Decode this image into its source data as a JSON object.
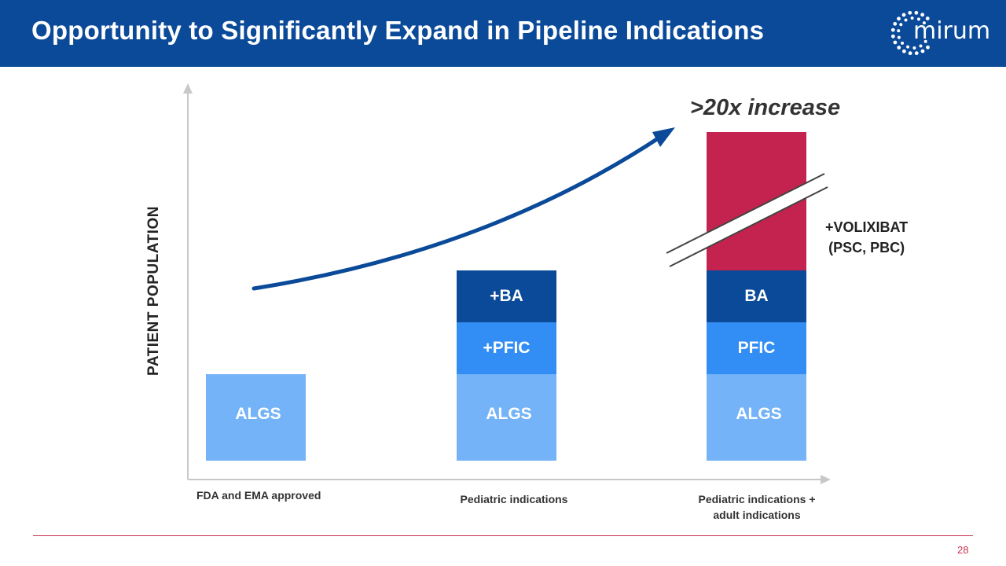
{
  "header": {
    "title": "Opportunity to Significantly Expand in Pipeline Indications",
    "logo_text": "mirum",
    "background": "#0a4a98"
  },
  "chart_data": {
    "type": "bar",
    "stacked": true,
    "ylabel": "PATIENT POPULATION",
    "categories": [
      "FDA and EMA approved",
      "Pediatric indications",
      "Pediatric indications + adult indications"
    ],
    "category_lines": [
      [
        "FDA and EMA approved"
      ],
      [
        "Pediatric indications"
      ],
      [
        "Pediatric indications +",
        "adult indications"
      ]
    ],
    "ylim": [
      0,
      4.5
    ],
    "axis_break_on_top_segment_of_last_bar": true,
    "bars": [
      {
        "segments": [
          {
            "label": "ALGS",
            "value": 1,
            "color": "#74b3f7"
          }
        ]
      },
      {
        "segments": [
          {
            "label": "ALGS",
            "value": 1,
            "color": "#74b3f7"
          },
          {
            "label": "+PFIC",
            "value": 0.6,
            "color": "#328df5"
          },
          {
            "label": "+BA",
            "value": 0.6,
            "color": "#0a4a98"
          }
        ]
      },
      {
        "segments": [
          {
            "label": "ALGS",
            "value": 1,
            "color": "#74b3f7"
          },
          {
            "label": "PFIC",
            "value": 0.6,
            "color": "#328df5"
          },
          {
            "label": "BA",
            "value": 0.6,
            "color": "#0a4a98"
          },
          {
            "label": "",
            "value": 1.6,
            "color": "#c4234f"
          }
        ]
      }
    ],
    "annotations": {
      "increase_text": ">20x increase",
      "volixibat_line1": "+VOLIXIBAT",
      "volixibat_line2": "(PSC, PBC)"
    },
    "arrow_color": "#0a4a98",
    "axis_color": "#c8c8c8"
  },
  "footer": {
    "page_number": "28",
    "rule_color": "#c8324f"
  }
}
